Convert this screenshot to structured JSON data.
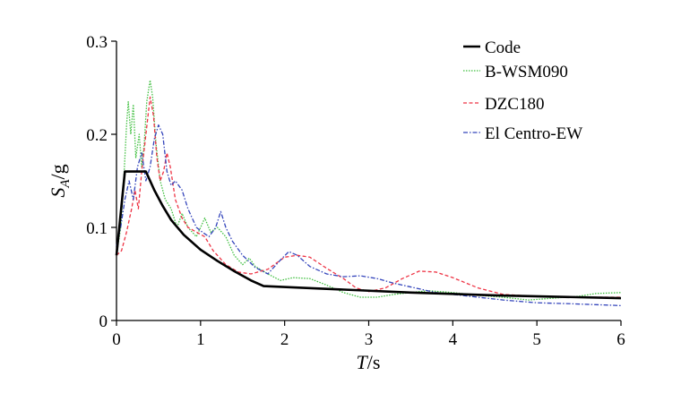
{
  "chart_data": {
    "type": "line",
    "title": "",
    "xlabel_main": "T",
    "xlabel_unit": "/s",
    "ylabel_main": "S",
    "ylabel_sub": "A",
    "ylabel_tail": "/g",
    "xlim": [
      0,
      6
    ],
    "ylim": [
      0,
      0.3
    ],
    "x_ticks": [
      0,
      1,
      2,
      3,
      4,
      5,
      6
    ],
    "x_tick_labels": [
      "0",
      "1",
      "2",
      "3",
      "4",
      "5",
      "6"
    ],
    "y_ticks": [
      0,
      0.1,
      0.2,
      0.3
    ],
    "y_tick_labels": [
      "0",
      "0.1",
      "0.2",
      "0.3"
    ],
    "grid": false,
    "legend_position": "top-right",
    "series": [
      {
        "name": "Code",
        "color": "#000000",
        "dash": "solid",
        "points": [
          [
            0,
            0.07
          ],
          [
            0.1,
            0.16
          ],
          [
            0.35,
            0.16
          ],
          [
            0.45,
            0.14
          ],
          [
            0.55,
            0.123
          ],
          [
            0.65,
            0.108
          ],
          [
            0.8,
            0.092
          ],
          [
            1.0,
            0.076
          ],
          [
            1.2,
            0.064
          ],
          [
            1.4,
            0.053
          ],
          [
            1.6,
            0.043
          ],
          [
            1.75,
            0.037
          ],
          [
            2.5,
            0.034
          ],
          [
            3.5,
            0.03
          ],
          [
            4.5,
            0.027
          ],
          [
            5.5,
            0.025
          ],
          [
            6.0,
            0.024
          ]
        ]
      },
      {
        "name": "B-WSM090",
        "color": "#3fbf3f",
        "dash": "dotted",
        "points": [
          [
            0,
            0.07
          ],
          [
            0.05,
            0.1
          ],
          [
            0.08,
            0.14
          ],
          [
            0.12,
            0.21
          ],
          [
            0.14,
            0.235
          ],
          [
            0.17,
            0.2
          ],
          [
            0.2,
            0.232
          ],
          [
            0.23,
            0.175
          ],
          [
            0.27,
            0.2
          ],
          [
            0.3,
            0.165
          ],
          [
            0.33,
            0.19
          ],
          [
            0.36,
            0.235
          ],
          [
            0.4,
            0.258
          ],
          [
            0.43,
            0.24
          ],
          [
            0.47,
            0.19
          ],
          [
            0.52,
            0.15
          ],
          [
            0.58,
            0.13
          ],
          [
            0.65,
            0.12
          ],
          [
            0.72,
            0.1
          ],
          [
            0.78,
            0.115
          ],
          [
            0.85,
            0.1
          ],
          [
            0.95,
            0.09
          ],
          [
            1.05,
            0.11
          ],
          [
            1.12,
            0.095
          ],
          [
            1.2,
            0.1
          ],
          [
            1.3,
            0.09
          ],
          [
            1.4,
            0.07
          ],
          [
            1.5,
            0.06
          ],
          [
            1.58,
            0.067
          ],
          [
            1.65,
            0.058
          ],
          [
            1.8,
            0.05
          ],
          [
            1.95,
            0.043
          ],
          [
            2.1,
            0.046
          ],
          [
            2.3,
            0.045
          ],
          [
            2.5,
            0.038
          ],
          [
            2.7,
            0.03
          ],
          [
            2.9,
            0.025
          ],
          [
            3.1,
            0.025
          ],
          [
            3.3,
            0.028
          ],
          [
            3.5,
            0.03
          ],
          [
            3.7,
            0.032
          ],
          [
            4.0,
            0.03
          ],
          [
            4.3,
            0.027
          ],
          [
            4.6,
            0.025
          ],
          [
            4.9,
            0.022
          ],
          [
            5.2,
            0.024
          ],
          [
            5.5,
            0.026
          ],
          [
            5.7,
            0.029
          ],
          [
            6.0,
            0.03
          ]
        ]
      },
      {
        "name": "DZC180",
        "color": "#ee3344",
        "dash": "dashed",
        "points": [
          [
            0,
            0.07
          ],
          [
            0.06,
            0.075
          ],
          [
            0.12,
            0.095
          ],
          [
            0.18,
            0.12
          ],
          [
            0.22,
            0.14
          ],
          [
            0.26,
            0.12
          ],
          [
            0.3,
            0.16
          ],
          [
            0.35,
            0.2
          ],
          [
            0.4,
            0.24
          ],
          [
            0.44,
            0.22
          ],
          [
            0.48,
            0.175
          ],
          [
            0.52,
            0.15
          ],
          [
            0.56,
            0.16
          ],
          [
            0.6,
            0.18
          ],
          [
            0.64,
            0.165
          ],
          [
            0.7,
            0.13
          ],
          [
            0.78,
            0.11
          ],
          [
            0.85,
            0.1
          ],
          [
            0.95,
            0.095
          ],
          [
            1.05,
            0.09
          ],
          [
            1.15,
            0.075
          ],
          [
            1.3,
            0.06
          ],
          [
            1.45,
            0.052
          ],
          [
            1.6,
            0.05
          ],
          [
            1.8,
            0.055
          ],
          [
            2.0,
            0.068
          ],
          [
            2.15,
            0.07
          ],
          [
            2.3,
            0.068
          ],
          [
            2.5,
            0.056
          ],
          [
            2.7,
            0.045
          ],
          [
            2.85,
            0.035
          ],
          [
            3.0,
            0.031
          ],
          [
            3.2,
            0.035
          ],
          [
            3.4,
            0.045
          ],
          [
            3.6,
            0.053
          ],
          [
            3.8,
            0.052
          ],
          [
            4.0,
            0.046
          ],
          [
            4.3,
            0.035
          ],
          [
            4.6,
            0.028
          ],
          [
            5.0,
            0.026
          ],
          [
            5.4,
            0.025
          ],
          [
            5.7,
            0.025
          ],
          [
            6.0,
            0.025
          ]
        ]
      },
      {
        "name": "El Centro-EW",
        "color": "#3344bb",
        "dash": "dashdot",
        "points": [
          [
            0,
            0.08
          ],
          [
            0.05,
            0.1
          ],
          [
            0.1,
            0.13
          ],
          [
            0.15,
            0.15
          ],
          [
            0.2,
            0.13
          ],
          [
            0.25,
            0.165
          ],
          [
            0.3,
            0.18
          ],
          [
            0.35,
            0.15
          ],
          [
            0.4,
            0.165
          ],
          [
            0.45,
            0.195
          ],
          [
            0.5,
            0.21
          ],
          [
            0.55,
            0.2
          ],
          [
            0.6,
            0.16
          ],
          [
            0.65,
            0.145
          ],
          [
            0.7,
            0.15
          ],
          [
            0.78,
            0.14
          ],
          [
            0.85,
            0.12
          ],
          [
            0.95,
            0.1
          ],
          [
            1.02,
            0.095
          ],
          [
            1.1,
            0.09
          ],
          [
            1.18,
            0.1
          ],
          [
            1.24,
            0.117
          ],
          [
            1.3,
            0.1
          ],
          [
            1.38,
            0.085
          ],
          [
            1.5,
            0.07
          ],
          [
            1.65,
            0.057
          ],
          [
            1.8,
            0.05
          ],
          [
            1.95,
            0.065
          ],
          [
            2.05,
            0.074
          ],
          [
            2.15,
            0.07
          ],
          [
            2.3,
            0.058
          ],
          [
            2.5,
            0.05
          ],
          [
            2.7,
            0.047
          ],
          [
            2.9,
            0.048
          ],
          [
            3.1,
            0.045
          ],
          [
            3.3,
            0.04
          ],
          [
            3.5,
            0.036
          ],
          [
            3.8,
            0.03
          ],
          [
            4.2,
            0.026
          ],
          [
            4.6,
            0.022
          ],
          [
            5.0,
            0.019
          ],
          [
            5.4,
            0.018
          ],
          [
            5.7,
            0.017
          ],
          [
            6.0,
            0.016
          ]
        ]
      }
    ]
  }
}
